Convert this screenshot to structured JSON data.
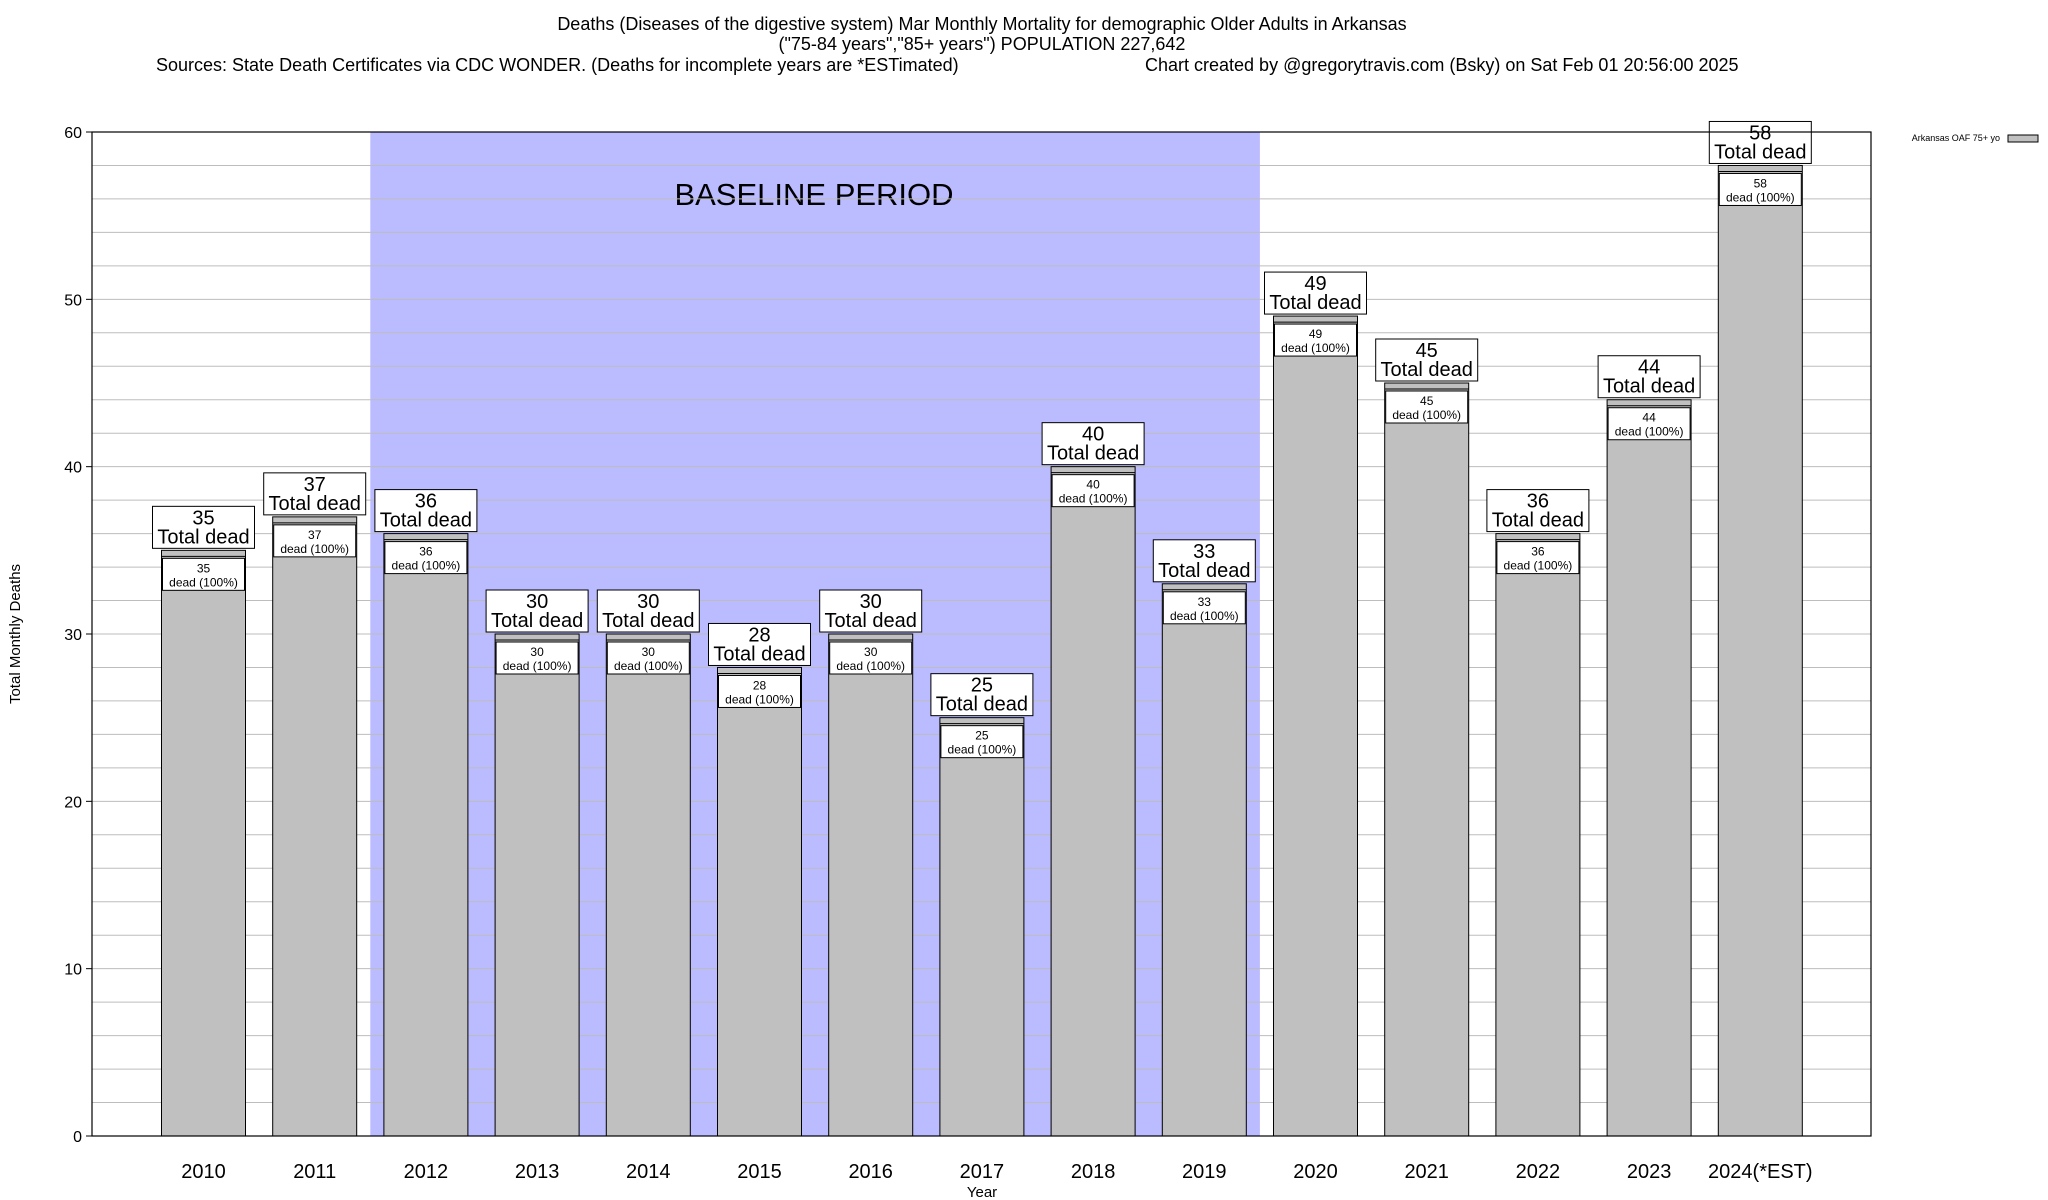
{
  "chart_data": {
    "type": "bar",
    "title_lines": [
      "Deaths (Diseases of the digestive system) Mar Monthly Mortality for demographic Older Adults in Arkansas",
      "(\"75-84 years\",\"85+ years\") POPULATION 227,642"
    ],
    "sources": "Sources: State Death Certificates via CDC WONDER. (Deaths for incomplete years are *ESTimated)",
    "credit": "Chart created by @gregorytravis.com (Bsky) on Sat Feb 01 20:56:00 2025",
    "xlabel": "Year",
    "ylabel": "Total Monthly Deaths",
    "ylim": [
      0,
      60
    ],
    "yticks": [
      0,
      10,
      20,
      30,
      40,
      50,
      60
    ],
    "minor_step": 2,
    "grid": true,
    "legend_position": "top-right",
    "categories": [
      "2010",
      "2011",
      "2012",
      "2013",
      "2014",
      "2015",
      "2016",
      "2017",
      "2018",
      "2019",
      "2020",
      "2021",
      "2022",
      "2023",
      "2024(*EST)"
    ],
    "series": [
      {
        "name": "Arkansas OAF 75+ yo",
        "color": "#c0c0c0",
        "values": [
          35,
          37,
          36,
          30,
          30,
          28,
          30,
          25,
          40,
          33,
          49,
          45,
          36,
          44,
          58
        ]
      }
    ],
    "total_label_text": "Total dead",
    "inner_label_text": "dead (100%)",
    "baseline": {
      "label": "BASELINE PERIOD",
      "from": "2012",
      "to": "2019",
      "color": "#bbbbff"
    }
  }
}
